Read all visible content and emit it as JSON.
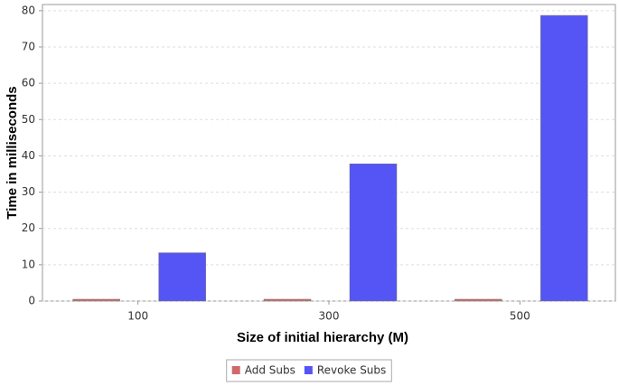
{
  "chart_data": {
    "type": "bar",
    "x_label": "Size of initial hierarchy (M)",
    "y_label": "Time in milliseconds",
    "categories": [
      "100",
      "300",
      "500"
    ],
    "series": [
      {
        "name": "Add Subs",
        "color": "#d06a6a",
        "values": [
          0.5,
          0.5,
          0.5
        ]
      },
      {
        "name": "Revoke Subs",
        "color": "#5555f5",
        "values": [
          13.3,
          37.8,
          78.7
        ]
      }
    ],
    "ylim": [
      0,
      81.7
    ],
    "yticks": [
      0,
      10,
      20,
      30,
      40,
      50,
      60,
      70,
      80
    ],
    "grid": true,
    "legend": "bottom"
  }
}
